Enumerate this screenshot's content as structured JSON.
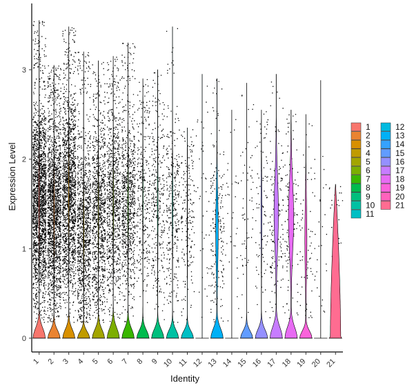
{
  "chart_data": {
    "type": "violin",
    "xlabel": "Identity",
    "ylabel": "Expression Level",
    "ylim": [
      -0.15,
      3.75
    ],
    "yticks": [
      0,
      1,
      2,
      3
    ],
    "grid": false,
    "legend_placement": "right",
    "categories": [
      "1",
      "2",
      "3",
      "4",
      "5",
      "6",
      "7",
      "8",
      "9",
      "10",
      "11",
      "12",
      "13",
      "14",
      "15",
      "16",
      "17",
      "18",
      "19",
      "20",
      "21"
    ],
    "colors": [
      "#F8766D",
      "#EA8331",
      "#D89000",
      "#C09B00",
      "#A3A500",
      "#7CAE00",
      "#39B600",
      "#00BB4E",
      "#00BF7D",
      "#00C1A3",
      "#00BFC4",
      "#00BAE0",
      "#00B0F6",
      "#35A2FF",
      "#619CFF",
      "#9590FF",
      "#C77CFF",
      "#E76BF3",
      "#FA62DB",
      "#FF62BC",
      "#FF6C91"
    ],
    "max_values": [
      3.55,
      3.05,
      3.48,
      3.2,
      3.1,
      3.15,
      3.3,
      2.9,
      3.0,
      3.48,
      2.35,
      2.95,
      2.9,
      2.55,
      2.85,
      2.55,
      2.95,
      2.55,
      2.5,
      2.88,
      1.72
    ],
    "point_counts": [
      2000,
      1700,
      1500,
      1050,
      950,
      850,
      800,
      300,
      300,
      300,
      180,
      40,
      200,
      35,
      60,
      90,
      160,
      120,
      60,
      30,
      25
    ],
    "zero_violin_height": [
      0.28,
      0.22,
      0.24,
      0.18,
      0.24,
      0.28,
      0.26,
      0.22,
      0.24,
      0.22,
      0.2,
      0.0,
      0.27,
      0.0,
      0.2,
      0.24,
      0.31,
      0.31,
      0.2,
      0.0,
      0.0
    ],
    "upper_violin_width": [
      0.06,
      0.05,
      0.05,
      0.04,
      0.04,
      0.04,
      0.04,
      0.03,
      0.04,
      0.04,
      0.02,
      0.0,
      0.18,
      0.0,
      0.0,
      0.06,
      0.32,
      0.38,
      0.14,
      0.0,
      0.0
    ],
    "upper_violin_center": [
      1.5,
      1.4,
      1.6,
      1.2,
      1.4,
      1.5,
      1.5,
      1.6,
      1.5,
      1.5,
      1.4,
      0.0,
      1.2,
      0.0,
      0.0,
      1.4,
      1.4,
      1.35,
      1.1,
      0.0,
      0.0
    ],
    "full_violin_21": true
  }
}
